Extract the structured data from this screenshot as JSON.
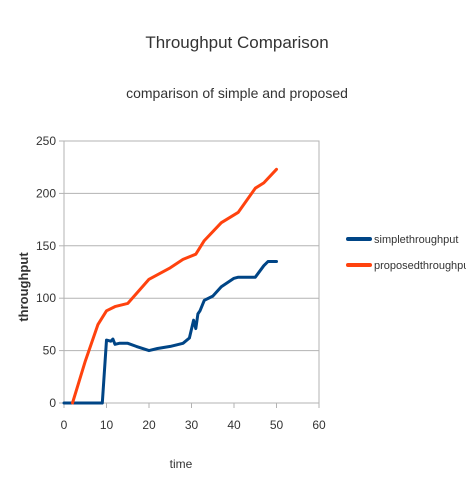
{
  "chart_data": {
    "type": "line",
    "title": "Throughput Comparison",
    "subtitle": "comparison of simple and proposed",
    "xlabel": "time",
    "ylabel": "throughput",
    "xlim": [
      0,
      60
    ],
    "ylim": [
      0,
      250
    ],
    "x_ticks": [
      0,
      10,
      20,
      30,
      40,
      50,
      60
    ],
    "y_ticks": [
      0,
      50,
      100,
      150,
      200,
      250
    ],
    "grid": {
      "horizontal": true,
      "vertical": false
    },
    "legend_position": "right",
    "series": [
      {
        "name": "simplethroughput",
        "color": "#004586",
        "points": [
          [
            0,
            0
          ],
          [
            8,
            0
          ],
          [
            9,
            0
          ],
          [
            10,
            60
          ],
          [
            11,
            59
          ],
          [
            11.5,
            61
          ],
          [
            12,
            56
          ],
          [
            13,
            57
          ],
          [
            15,
            57
          ],
          [
            17,
            54
          ],
          [
            20,
            50
          ],
          [
            22,
            52
          ],
          [
            25,
            54
          ],
          [
            28,
            57
          ],
          [
            29.5,
            62
          ],
          [
            30.5,
            79
          ],
          [
            31,
            71
          ],
          [
            31.5,
            85
          ],
          [
            32,
            88
          ],
          [
            33,
            98
          ],
          [
            35,
            102
          ],
          [
            37,
            111
          ],
          [
            40,
            119
          ],
          [
            41,
            120
          ],
          [
            45,
            120
          ],
          [
            47,
            131
          ],
          [
            48,
            135
          ],
          [
            50,
            135
          ]
        ]
      },
      {
        "name": "proposedthroughput",
        "color": "#ff420e",
        "points": [
          [
            2,
            0
          ],
          [
            5,
            40
          ],
          [
            8,
            75
          ],
          [
            10,
            88
          ],
          [
            12,
            92
          ],
          [
            15,
            95
          ],
          [
            20,
            118
          ],
          [
            25,
            129
          ],
          [
            28,
            137
          ],
          [
            31,
            142
          ],
          [
            33,
            155
          ],
          [
            37,
            172
          ],
          [
            41,
            182
          ],
          [
            45,
            205
          ],
          [
            47,
            210
          ],
          [
            50,
            223
          ]
        ]
      }
    ]
  }
}
